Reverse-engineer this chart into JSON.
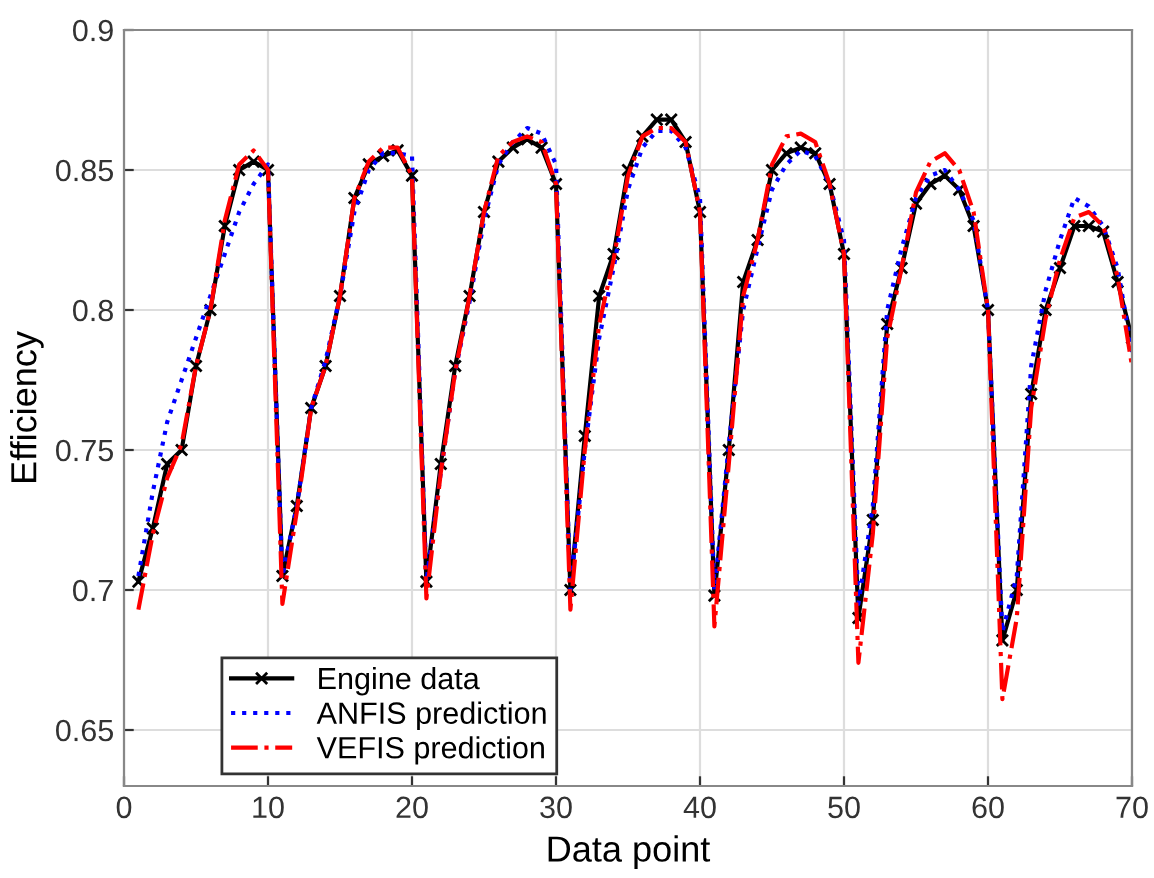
{
  "chart_data": {
    "type": "line",
    "xlabel": "Data point",
    "ylabel": "Efficiency",
    "x": [
      1,
      2,
      3,
      4,
      5,
      6,
      7,
      8,
      9,
      10,
      11,
      12,
      13,
      14,
      15,
      16,
      17,
      18,
      19,
      20,
      21,
      22,
      23,
      24,
      25,
      26,
      27,
      28,
      29,
      30,
      31,
      32,
      33,
      34,
      35,
      36,
      37,
      38,
      39,
      40,
      41,
      42,
      43,
      44,
      45,
      46,
      47,
      48,
      49,
      50,
      51,
      52,
      53,
      54,
      55,
      56,
      57,
      58,
      59,
      60,
      61,
      62,
      63,
      64,
      65,
      66,
      67,
      68,
      69,
      70
    ],
    "series": [
      {
        "name": "Engine data",
        "color": "#000000",
        "marker": "cross",
        "line_style": "solid",
        "values": [
          0.703,
          0.722,
          0.745,
          0.75,
          0.78,
          0.8,
          0.83,
          0.85,
          0.853,
          0.85,
          0.705,
          0.73,
          0.765,
          0.78,
          0.805,
          0.84,
          0.852,
          0.855,
          0.857,
          0.848,
          0.703,
          0.745,
          0.78,
          0.805,
          0.835,
          0.853,
          0.858,
          0.861,
          0.858,
          0.845,
          0.7,
          0.755,
          0.805,
          0.82,
          0.85,
          0.862,
          0.868,
          0.868,
          0.86,
          0.835,
          0.698,
          0.75,
          0.81,
          0.825,
          0.85,
          0.856,
          0.858,
          0.856,
          0.845,
          0.82,
          0.69,
          0.725,
          0.795,
          0.815,
          0.838,
          0.845,
          0.848,
          0.843,
          0.83,
          0.8,
          0.682,
          0.7,
          0.77,
          0.8,
          0.815,
          0.83,
          0.83,
          0.828,
          0.81,
          0.79
        ]
      },
      {
        "name": "ANFIS prediction",
        "color": "#0000ff",
        "marker": "none",
        "line_style": "dotted",
        "values": [
          0.705,
          0.735,
          0.76,
          0.775,
          0.79,
          0.805,
          0.82,
          0.835,
          0.845,
          0.852,
          0.705,
          0.73,
          0.765,
          0.782,
          0.805,
          0.835,
          0.85,
          0.856,
          0.856,
          0.855,
          0.703,
          0.742,
          0.778,
          0.803,
          0.832,
          0.852,
          0.86,
          0.865,
          0.863,
          0.852,
          0.7,
          0.75,
          0.79,
          0.815,
          0.843,
          0.858,
          0.864,
          0.864,
          0.858,
          0.84,
          0.7,
          0.752,
          0.8,
          0.822,
          0.843,
          0.852,
          0.857,
          0.855,
          0.845,
          0.825,
          0.695,
          0.73,
          0.8,
          0.822,
          0.84,
          0.848,
          0.85,
          0.843,
          0.832,
          0.8,
          0.685,
          0.705,
          0.78,
          0.807,
          0.825,
          0.84,
          0.837,
          0.83,
          0.815,
          0.785
        ]
      },
      {
        "name": "VEFIS prediction",
        "color": "#ff0000",
        "marker": "none",
        "line_style": "dashdot",
        "values": [
          0.693,
          0.72,
          0.74,
          0.752,
          0.78,
          0.8,
          0.832,
          0.852,
          0.857,
          0.85,
          0.695,
          0.728,
          0.765,
          0.78,
          0.805,
          0.84,
          0.853,
          0.858,
          0.858,
          0.848,
          0.697,
          0.742,
          0.778,
          0.805,
          0.835,
          0.855,
          0.86,
          0.862,
          0.86,
          0.845,
          0.693,
          0.75,
          0.795,
          0.818,
          0.848,
          0.862,
          0.865,
          0.865,
          0.86,
          0.835,
          0.687,
          0.745,
          0.805,
          0.825,
          0.852,
          0.862,
          0.863,
          0.86,
          0.845,
          0.82,
          0.674,
          0.72,
          0.79,
          0.815,
          0.842,
          0.853,
          0.856,
          0.85,
          0.835,
          0.8,
          0.661,
          0.69,
          0.765,
          0.797,
          0.818,
          0.833,
          0.835,
          0.83,
          0.812,
          0.78
        ]
      }
    ],
    "xlim": [
      0,
      70
    ],
    "xticks": [
      0,
      10,
      20,
      30,
      40,
      50,
      60,
      70
    ],
    "ylim": [
      0.63,
      0.9
    ],
    "yticks": [
      0.65,
      0.7,
      0.75,
      0.8,
      0.85,
      0.9
    ],
    "grid": true,
    "legend": "bottom left"
  }
}
